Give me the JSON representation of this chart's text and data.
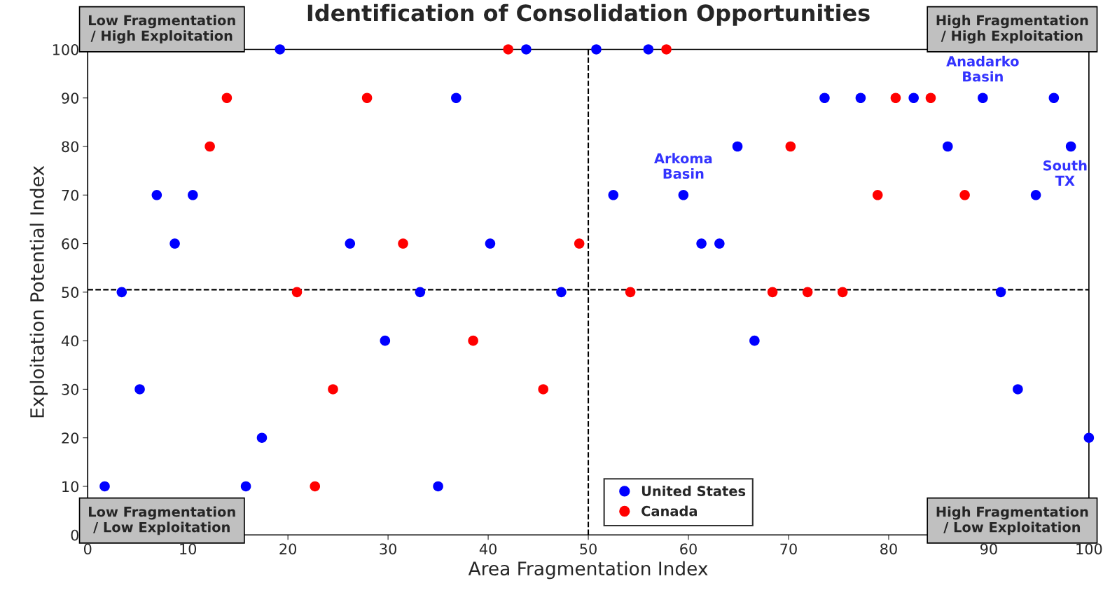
{
  "chart_data": {
    "type": "scatter",
    "title": "Identification of Consolidation Opportunities",
    "xlabel": "Area Fragmentation Index",
    "ylabel": "Exploitation Potential Index",
    "xlim": [
      0,
      100
    ],
    "ylim": [
      0,
      100
    ],
    "xticks": [
      0,
      10,
      20,
      30,
      40,
      50,
      60,
      70,
      80,
      90,
      100
    ],
    "yticks": [
      0,
      10,
      20,
      30,
      40,
      50,
      60,
      70,
      80,
      90,
      100
    ],
    "grid": false,
    "legend": "bottom",
    "marker": "circle",
    "series": [
      {
        "name": "United States",
        "color": "#0000ff",
        "x": [
          1.7,
          3.4,
          5.2,
          6.9,
          8.7,
          10.5,
          15.8,
          17.4,
          19.2,
          26.2,
          29.7,
          33.2,
          35.0,
          36.8,
          40.2,
          43.8,
          47.3,
          50.8,
          52.5,
          56.0,
          59.5,
          61.3,
          63.1,
          64.9,
          66.6,
          73.6,
          77.2,
          82.5,
          85.9,
          89.4,
          91.2,
          92.9,
          94.7,
          96.5,
          98.2,
          100
        ],
        "values": [
          10,
          50,
          30,
          70,
          60,
          70,
          10,
          20,
          100,
          60,
          40,
          50,
          10,
          90,
          60,
          100,
          50,
          100,
          70,
          100,
          70,
          60,
          60,
          80,
          40,
          90,
          90,
          90,
          80,
          90,
          50,
          30,
          70,
          90,
          80,
          20
        ]
      },
      {
        "name": "Canada",
        "color": "#ff0000",
        "x": [
          12.2,
          13.9,
          20.9,
          22.7,
          24.5,
          27.9,
          31.5,
          38.5,
          42.0,
          45.5,
          49.1,
          54.2,
          57.8,
          68.4,
          70.2,
          71.9,
          75.4,
          78.9,
          80.7,
          84.2,
          87.6
        ],
        "values": [
          80,
          90,
          50,
          10,
          30,
          90,
          60,
          40,
          100,
          30,
          60,
          50,
          100,
          50,
          80,
          50,
          50,
          70,
          90,
          90,
          70
        ]
      }
    ],
    "ref_lines": [
      {
        "axis": "x",
        "value": 50,
        "line_style": "dashed",
        "color": "#000000"
      },
      {
        "axis": "y",
        "value": 50.5,
        "line_style": "dashed",
        "color": "#000000"
      }
    ],
    "annotations": [
      "Low Fragmentation\n/ High Exploitation",
      "High Fragmentation\n/ High Exploitation",
      "Low Fragmentation\n/ Low Exploitation",
      "High Fragmentation\n/ Low Exploitation",
      {
        "text": "Arkoma\nBasin",
        "x": 59.5,
        "y": 70
      },
      {
        "text": "Anadarko\nBasin",
        "x": 89.4,
        "y": 90
      },
      {
        "text": "South\nTX",
        "x": 98.2,
        "y": 80
      }
    ]
  }
}
